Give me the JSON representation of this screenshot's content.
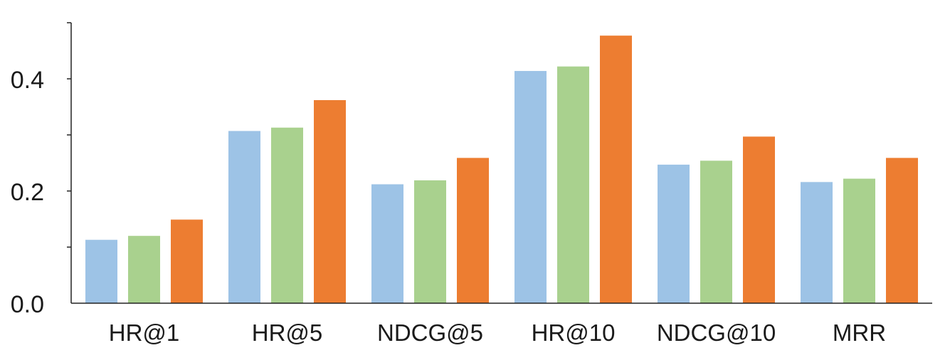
{
  "chart_data": {
    "type": "bar",
    "title": "",
    "xlabel": "",
    "ylabel": "",
    "categories": [
      "HR@1",
      "HR@5",
      "NDCG@5",
      "HR@10",
      "NDCG@10",
      "MRR"
    ],
    "series": [
      {
        "color": "#9dc3e6",
        "values": [
          0.113,
          0.307,
          0.212,
          0.414,
          0.247,
          0.216
        ]
      },
      {
        "color": "#a9d18e",
        "values": [
          0.12,
          0.313,
          0.219,
          0.422,
          0.254,
          0.222
        ]
      },
      {
        "color": "#ed7d31",
        "values": [
          0.149,
          0.362,
          0.259,
          0.477,
          0.297,
          0.259
        ]
      }
    ],
    "ylim": [
      0,
      0.5
    ],
    "yticks": [
      {
        "value": 0.0,
        "label": "0.0"
      },
      {
        "value": 0.2,
        "label": "0.2"
      },
      {
        "value": 0.4,
        "label": "0.4"
      }
    ],
    "minor_yticks": [
      0.1,
      0.3,
      0.5
    ],
    "grid": false,
    "legend": "none"
  }
}
